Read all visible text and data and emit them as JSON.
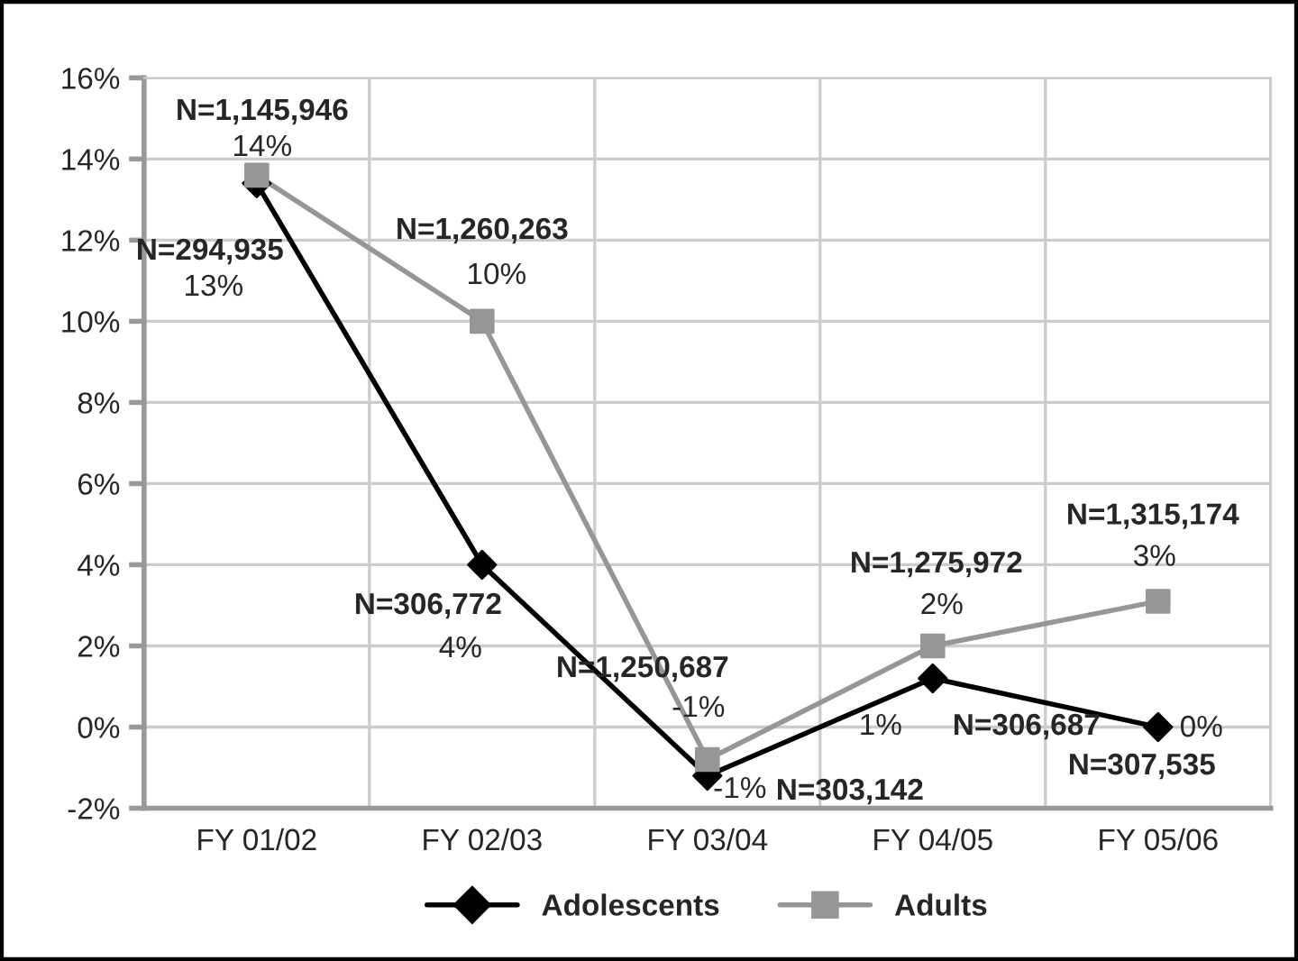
{
  "chart_data": {
    "type": "line",
    "categories": [
      "FY 01/02",
      "FY 02/03",
      "FY 03/04",
      "FY 04/05",
      "FY 05/06"
    ],
    "series": [
      {
        "name": "Adolescents",
        "color": "#000000",
        "marker": "diamond",
        "values": [
          13.4,
          4.0,
          -1.2,
          1.2,
          0.0
        ],
        "value_labels": [
          "13%",
          "4%",
          "-1%",
          "1%",
          "0%"
        ]
      },
      {
        "name": "Adults",
        "color": "#969696",
        "marker": "square",
        "values": [
          13.6,
          10.0,
          -0.8,
          2.0,
          3.1
        ],
        "value_labels": [
          "14%",
          "10%",
          "-1%",
          "2%",
          "3%"
        ]
      }
    ],
    "annotations": [
      {
        "text": "N=294,935",
        "x": "FY 01/02",
        "y": 13.4
      },
      {
        "text": "N=306,772",
        "x": "FY 02/03",
        "y": 4.0
      },
      {
        "text": "N=303,142",
        "x": "FY 03/04",
        "y": -1.2
      },
      {
        "text": "N=306,687",
        "x": "FY 04/05",
        "y": 1.2
      },
      {
        "text": "N=307,535",
        "x": "FY 05/06",
        "y": 0.0
      },
      {
        "text": "N=1,145,946",
        "x": "FY 01/02",
        "y": 13.6
      },
      {
        "text": "N=1,260,263",
        "x": "FY 02/03",
        "y": 10.0
      },
      {
        "text": "N=1,250,687",
        "x": "FY 03/04",
        "y": -0.8
      },
      {
        "text": "N=1,275,972",
        "x": "FY 04/05",
        "y": 2.0
      },
      {
        "text": "N=1,315,174",
        "x": "FY 05/06",
        "y": 3.1
      }
    ],
    "ylim": [
      -2,
      16
    ],
    "yticks": [
      {
        "value": -2,
        "label": "-2%"
      },
      {
        "value": 0,
        "label": "0%"
      },
      {
        "value": 2,
        "label": "2%"
      },
      {
        "value": 4,
        "label": "4%"
      },
      {
        "value": 6,
        "label": "6%"
      },
      {
        "value": 8,
        "label": "8%"
      },
      {
        "value": 10,
        "label": "10%"
      },
      {
        "value": 12,
        "label": "12%"
      },
      {
        "value": 14,
        "label": "14%"
      },
      {
        "value": 16,
        "label": "16%"
      }
    ],
    "grid": true,
    "legend": "bottom",
    "line_style": "solid"
  }
}
